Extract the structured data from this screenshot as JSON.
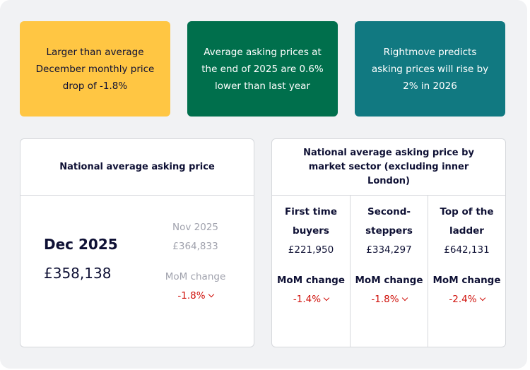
{
  "highlights": [
    {
      "text": "Larger than average December monthly price drop of -1.8%",
      "color": "#ffc643",
      "text_color": "#0e1034"
    },
    {
      "text": "Average asking prices at the end of 2025 are 0.6% lower than last year",
      "color": "#006f4c",
      "text_color": "#ffffff"
    },
    {
      "text": "Rightmove predicts asking prices will rise by 2% in 2026",
      "color": "#117981",
      "text_color": "#ffffff"
    }
  ],
  "national": {
    "title": "National average asking price",
    "month": "Dec 2025",
    "price": "£358,138",
    "prev_month": "Nov 2025",
    "prev_price": "£364,833",
    "mom_label": "MoM change",
    "mom_value": "-1.8%"
  },
  "sector": {
    "title": "National average asking price by market sector (excluding inner London)",
    "columns": [
      {
        "name": "First time buyers",
        "price": "£221,950",
        "mom_label": "MoM change",
        "mom_value": "-1.4%"
      },
      {
        "name": "Second-steppers",
        "price": "£334,297",
        "mom_label": "MoM change",
        "mom_value": "-1.8%"
      },
      {
        "name": "Top of the ladder",
        "price": "£642,131",
        "mom_label": "MoM change",
        "mom_value": "-2.4%"
      }
    ]
  }
}
